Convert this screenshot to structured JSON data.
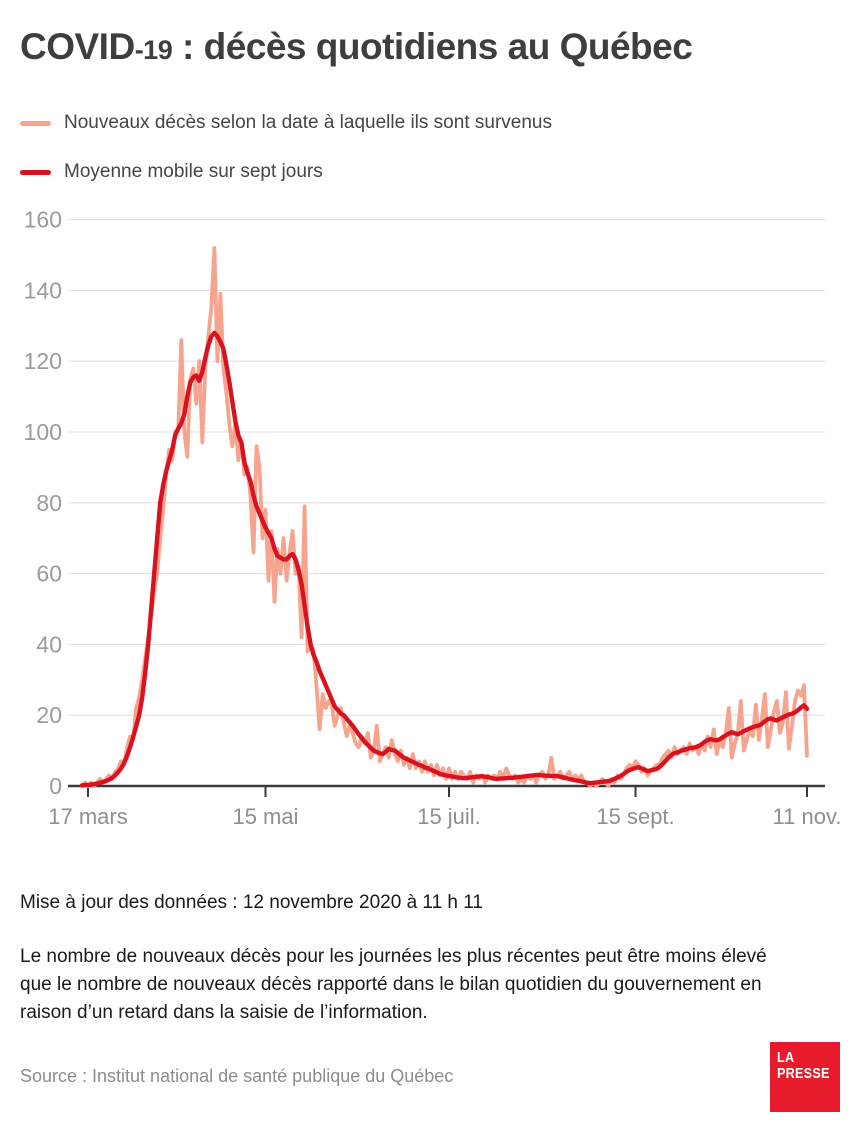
{
  "title": {
    "part1": "COVID",
    "part2": "-19",
    "part3": " : décès quotidiens au Québec"
  },
  "legend": {
    "items": [
      {
        "label": "Nouveaux décès selon la date à laquelle ils sont survenus",
        "color": "#f7a48f"
      },
      {
        "label": "Moyenne mobile sur sept jours",
        "color": "#d8131f"
      }
    ]
  },
  "chart_data": {
    "type": "line",
    "title": "COVID-19 : décès quotidiens au Québec",
    "xlabel": "",
    "ylabel": "",
    "ylim": [
      0,
      160
    ],
    "grid": true,
    "legend_position": "top-left",
    "x_start_date": "2020-03-15",
    "x_end_date": "2020-11-11",
    "x_ticks": [
      {
        "label": "17 mars",
        "day": 2
      },
      {
        "label": "15 mai",
        "day": 61
      },
      {
        "label": "15 juil.",
        "day": 122
      },
      {
        "label": "15 sept.",
        "day": 184
      },
      {
        "label": "11 nov.",
        "day": 241
      }
    ],
    "y_ticks": [
      0,
      20,
      40,
      60,
      80,
      100,
      120,
      140,
      160
    ],
    "series": [
      {
        "name": "Nouveaux décès selon la date à laquelle ils sont survenus",
        "color": "#f7a48f",
        "values": [
          0,
          1,
          0,
          1,
          0,
          1,
          2,
          1,
          2,
          3,
          2,
          4,
          5,
          7,
          6,
          11,
          14,
          13,
          22,
          25,
          30,
          36,
          42,
          48,
          55,
          60,
          70,
          78,
          88,
          95,
          92,
          100,
          101,
          126,
          100,
          93,
          115,
          118,
          108,
          120,
          97,
          118,
          127,
          135,
          152,
          120,
          139,
          118,
          111,
          102,
          96,
          103,
          92,
          97,
          88,
          90,
          82,
          66,
          96,
          90,
          70,
          78,
          58,
          72,
          52,
          67,
          60,
          70,
          58,
          66,
          72,
          60,
          62,
          42,
          79,
          38,
          40,
          38,
          28,
          16,
          26,
          22,
          24,
          23,
          17,
          20,
          22,
          18,
          14,
          17,
          15,
          12,
          11,
          14,
          12,
          15,
          8,
          10,
          17,
          7,
          9,
          11,
          8,
          13,
          9,
          7,
          10,
          6,
          8,
          5,
          9,
          5,
          7,
          4,
          7,
          4,
          6,
          3,
          6,
          3,
          5,
          2,
          5,
          2,
          4,
          2,
          4,
          3,
          2,
          4,
          1,
          3,
          2,
          3,
          1,
          3,
          2,
          3,
          2,
          4,
          2,
          5,
          3,
          2,
          3,
          1,
          2,
          1,
          3,
          2,
          3,
          1,
          3,
          4,
          2,
          3,
          8,
          2,
          3,
          4,
          2,
          3,
          4,
          2,
          3,
          2,
          3,
          1,
          1,
          0,
          1,
          0,
          1,
          2,
          1,
          0,
          2,
          1,
          3,
          2,
          3,
          5,
          6,
          5,
          7,
          6,
          4,
          5,
          3,
          4,
          5,
          6,
          6,
          8,
          9,
          10,
          8,
          11,
          9,
          10,
          11,
          9,
          12,
          10,
          11,
          9,
          12,
          10,
          14,
          11,
          16,
          9,
          13,
          11,
          15,
          22,
          8,
          12,
          15,
          24,
          10,
          13,
          16,
          14,
          23,
          13,
          19,
          26,
          11,
          16,
          21,
          24,
          15,
          18,
          26.5,
          10.5,
          17,
          24,
          27,
          25.5,
          28.5,
          8.5
        ]
      },
      {
        "name": "Moyenne mobile sur sept jours",
        "color": "#d8131f",
        "values": [
          0.2,
          0.25,
          0.3,
          0.4,
          0.55,
          0.7,
          0.9,
          1.1,
          1.4,
          1.8,
          2.3,
          3,
          3.9,
          5,
          6.5,
          8.5,
          11,
          13.8,
          16.8,
          20,
          25,
          32,
          40,
          50,
          60,
          70,
          80,
          85,
          89,
          92,
          95,
          99,
          101,
          102.5,
          105,
          110,
          114,
          115.5,
          116,
          114.5,
          117,
          121,
          124.5,
          127,
          128,
          127,
          125.5,
          123.5,
          119,
          114,
          108.5,
          103,
          99,
          97,
          91.5,
          88.5,
          86,
          82,
          79,
          77,
          75,
          73,
          71.5,
          70,
          67,
          65,
          64.5,
          64,
          64,
          65,
          65.5,
          64,
          61,
          57,
          51,
          45,
          40,
          37,
          35,
          32.5,
          30.5,
          28.5,
          26.5,
          24.5,
          22.5,
          21.5,
          20.5,
          20,
          19,
          18,
          17,
          15.8,
          14.6,
          13.5,
          12.5,
          11.6,
          10.8,
          10,
          9.6,
          9.2,
          9,
          9.7,
          10.5,
          10.2,
          10,
          9.3,
          8.6,
          8,
          7.6,
          7.2,
          6.8,
          6.4,
          6,
          5.7,
          5.2,
          5,
          4.6,
          4.2,
          3.8,
          3.4,
          3.2,
          3,
          2.8,
          2.7,
          2.5,
          2.4,
          2.3,
          2.2,
          2.3,
          2.4,
          2.5,
          2.6,
          2.7,
          2.8,
          2.6,
          2.5,
          2.3,
          2.1,
          2,
          2.1,
          2.15,
          2.2,
          2.3,
          2.35,
          2.4,
          2.5,
          2.6,
          2.7,
          2.8,
          2.9,
          3,
          3.1,
          3.1,
          3,
          2.95,
          2.9,
          2.85,
          2.8,
          2.8,
          2.6,
          2.4,
          2.2,
          2,
          1.8,
          1.6,
          1.5,
          1.3,
          1.1,
          0.9,
          0.8,
          0.9,
          1,
          1.1,
          1.2,
          1.3,
          1.4,
          1.6,
          2,
          2.4,
          2.8,
          3.4,
          4,
          4.5,
          4.8,
          5.1,
          5.3,
          5,
          4.6,
          4.2,
          4.4,
          4.6,
          4.8,
          5.4,
          6.2,
          7.1,
          8.1,
          8.8,
          9.3,
          9.5,
          9.9,
          10.2,
          10.4,
          10.7,
          10.8,
          11,
          11.3,
          11.8,
          12.5,
          13,
          13.2,
          13,
          12.9,
          13.2,
          13.8,
          14.3,
          14.8,
          15.2,
          14.9,
          14.6,
          15,
          15.5,
          15.9,
          16.3,
          16.6,
          16.9,
          17.1,
          17.6,
          18.3,
          18.9,
          19.1,
          18.7,
          18.5,
          19,
          19.4,
          19.8,
          20.2,
          20.4,
          20.8,
          21.4,
          22.2,
          22.8,
          21.8
        ]
      }
    ]
  },
  "style": {
    "grid_color": "#e4e4e4",
    "axis_color": "#3a3a3a",
    "y_label_color": "#9b9b9b",
    "x_label_color": "#8f8f8f",
    "logo_color": "#e81b2d"
  },
  "footer": {
    "updated": "Mise à jour des données : 12 novembre 2020 à 11 h 11",
    "note": "Le nombre de nouveaux décès pour les journées les plus récentes peut être moins élevé que le nombre de nouveaux décès rapporté dans le bilan quotidien du gouvernement en raison d’un retard dans la saisie de l’information.",
    "source": "Source : Institut national de santé publique du Québec",
    "logo_line1": "LA",
    "logo_line2": "PRESSE"
  }
}
